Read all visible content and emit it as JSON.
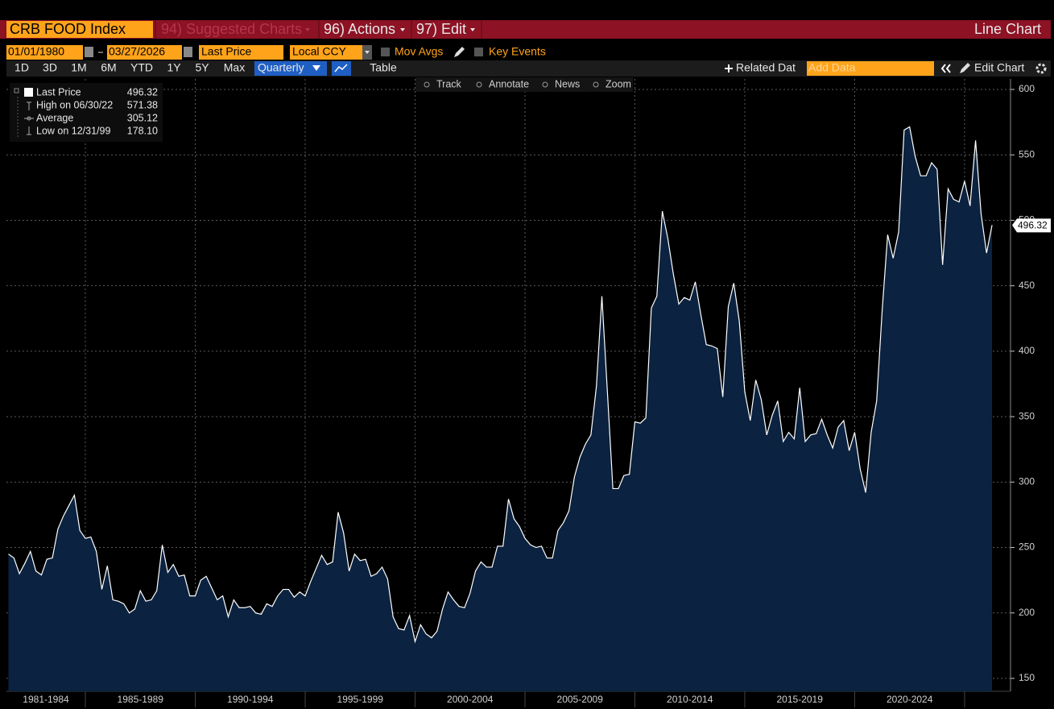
{
  "header": {
    "security": "CRB FOOD Index",
    "menus": [
      "94) Suggested Charts",
      "96) Actions",
      "97) Edit"
    ],
    "view": "Line Chart"
  },
  "controls": {
    "start_date": "01/01/1980",
    "end_date": "03/27/2026",
    "field": "Last Price",
    "currency": "Local CCY",
    "mov_avgs": "Mov Avgs",
    "key_events": "Key Events",
    "periods": [
      "1D",
      "3D",
      "1M",
      "6M",
      "YTD",
      "1Y",
      "5Y",
      "Max"
    ],
    "frequency": "Quarterly",
    "table": "Table",
    "related": "Related Dat",
    "add_data": "Add Data",
    "edit_chart": "Edit Chart",
    "tools": [
      "Track",
      "Annotate",
      "News",
      "Zoom"
    ]
  },
  "chart_data": {
    "type": "area",
    "legend": [
      {
        "label": "Last Price",
        "value": "496.32"
      },
      {
        "label": "High on 06/30/22",
        "value": "571.38"
      },
      {
        "label": "Average",
        "value": "305.12"
      },
      {
        "label": "Low on 12/31/99",
        "value": "178.10"
      }
    ],
    "x": [
      1981.5,
      1981.75,
      1982,
      1982.25,
      1982.5,
      1982.75,
      1983,
      1983.25,
      1983.5,
      1983.75,
      1984,
      1984.25,
      1984.5,
      1984.75,
      1985,
      1985.25,
      1985.5,
      1985.75,
      1986,
      1986.25,
      1986.5,
      1986.75,
      1987,
      1987.25,
      1987.5,
      1987.75,
      1988,
      1988.25,
      1988.5,
      1988.75,
      1989,
      1989.25,
      1989.5,
      1989.75,
      1990,
      1990.25,
      1990.5,
      1990.75,
      1991,
      1991.25,
      1991.5,
      1991.75,
      1992,
      1992.25,
      1992.5,
      1992.75,
      1993,
      1993.25,
      1993.5,
      1993.75,
      1994,
      1994.25,
      1994.5,
      1994.75,
      1995,
      1995.25,
      1995.5,
      1995.75,
      1996,
      1996.25,
      1996.5,
      1996.75,
      1997,
      1997.25,
      1997.5,
      1997.75,
      1998,
      1998.25,
      1998.5,
      1998.75,
      1999,
      1999.25,
      1999.5,
      1999.75,
      2000,
      2000.25,
      2000.5,
      2000.75,
      2001,
      2001.25,
      2001.5,
      2001.75,
      2002,
      2002.25,
      2002.5,
      2002.75,
      2003,
      2003.25,
      2003.5,
      2003.75,
      2004,
      2004.25,
      2004.5,
      2004.75,
      2005,
      2005.25,
      2005.5,
      2005.75,
      2006,
      2006.25,
      2006.5,
      2006.75,
      2007,
      2007.25,
      2007.5,
      2007.75,
      2008,
      2008.25,
      2008.5,
      2008.75,
      2009,
      2009.25,
      2009.5,
      2009.75,
      2010,
      2010.25,
      2010.5,
      2010.75,
      2011,
      2011.25,
      2011.5,
      2011.75,
      2012,
      2012.25,
      2012.5,
      2012.75,
      2013,
      2013.25,
      2013.5,
      2013.75,
      2014,
      2014.25,
      2014.5,
      2014.75,
      2015,
      2015.25,
      2015.5,
      2015.75,
      2016,
      2016.25,
      2016.5,
      2016.75,
      2017,
      2017.25,
      2017.5,
      2017.75,
      2018,
      2018.25,
      2018.5,
      2018.75,
      2019,
      2019.25,
      2019.5,
      2019.75,
      2020,
      2020.25,
      2020.5,
      2020.75,
      2021,
      2021.25,
      2021.5,
      2021.75,
      2022,
      2022.25,
      2022.5,
      2022.75,
      2023,
      2023.25,
      2023.5,
      2023.75,
      2024,
      2024.25,
      2024.5,
      2024.75,
      2025,
      2025.25,
      2025.5,
      2025.75,
      2026,
      2026.25
    ],
    "values": [
      245,
      242,
      230,
      238,
      247,
      232,
      229,
      241,
      242,
      264,
      274,
      282,
      290,
      263,
      257,
      258,
      247,
      218,
      236,
      210,
      209,
      207,
      200,
      203,
      217,
      209,
      210,
      217,
      252,
      231,
      237,
      228,
      229,
      213,
      213,
      225,
      228,
      219,
      210,
      213,
      197,
      210,
      204,
      204,
      205,
      200,
      199,
      207,
      205,
      213,
      218,
      218,
      212,
      216,
      213,
      224,
      234,
      244,
      237,
      239,
      277,
      261,
      232,
      245,
      240,
      241,
      228,
      230,
      235,
      226,
      197,
      188,
      187,
      198,
      178.1,
      191,
      184,
      181,
      186,
      203,
      216,
      210,
      205,
      204,
      215,
      232,
      239,
      235,
      235,
      251,
      251,
      287,
      272,
      266,
      257,
      252,
      250,
      251,
      242,
      242,
      263,
      269,
      278,
      304,
      319,
      329,
      336,
      373,
      442,
      369,
      295,
      295,
      305,
      306,
      346,
      345,
      349,
      433,
      442,
      507,
      486,
      459,
      436,
      441,
      439,
      453,
      428,
      405,
      404,
      402,
      365,
      434,
      452,
      423,
      369,
      347,
      378,
      363,
      336,
      351,
      362,
      331,
      338,
      333,
      372,
      331,
      336,
      337,
      348,
      336,
      326,
      342,
      347,
      324,
      338,
      310,
      292,
      338,
      362,
      431,
      489,
      471,
      491,
      569,
      571.38,
      549,
      534,
      534,
      544,
      539,
      466,
      524,
      516,
      514,
      530,
      511,
      561,
      505,
      475,
      496.32
    ],
    "color": "#ffffff",
    "fill_color": "#0b2240",
    "xlim": [
      1981.41,
      2027.09
    ],
    "xbands": [
      {
        "label": "1981-1984",
        "from": 1981,
        "to": 1985
      },
      {
        "label": "1985-1989",
        "from": 1985,
        "to": 1990
      },
      {
        "label": "1990-1994",
        "from": 1990,
        "to": 1995
      },
      {
        "label": "1995-1999",
        "from": 1995,
        "to": 2000
      },
      {
        "label": "2000-2004",
        "from": 2000,
        "to": 2005
      },
      {
        "label": "2005-2009",
        "from": 2005,
        "to": 2010
      },
      {
        "label": "2010-2014",
        "from": 2010,
        "to": 2015
      },
      {
        "label": "2015-2019",
        "from": 2015,
        "to": 2020
      },
      {
        "label": "2020-2024",
        "from": 2020,
        "to": 2025
      }
    ],
    "ylim": [
      140.15,
      608
    ],
    "yticks": [
      150,
      200,
      250,
      300,
      350,
      400,
      450,
      500,
      550,
      600
    ],
    "grid": true
  }
}
